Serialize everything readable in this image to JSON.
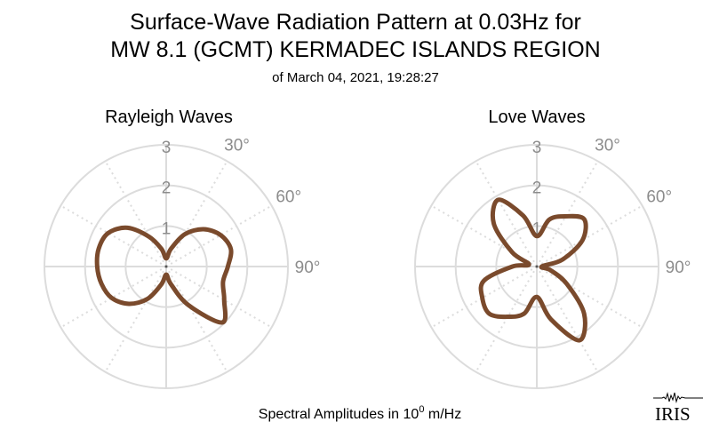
{
  "header": {
    "title_line1": "Surface-Wave Radiation Pattern at 0.03Hz for",
    "title_line2": "MW 8.1 (GCMT) KERMADEC ISLANDS REGION",
    "subtitle": "of March 04, 2021, 19:28:27"
  },
  "footer": {
    "caption_prefix": "Spectral Amplitudes in 10",
    "caption_exp": "0",
    "caption_suffix": " m/Hz"
  },
  "logo": {
    "text": "IRIS"
  },
  "colors": {
    "pattern": "#7a4a2c",
    "grid": "#dcdcdc",
    "tick_text": "#8c8c8c"
  },
  "chart_data": [
    {
      "type": "polar-line",
      "title": "Rayleigh Waves",
      "r_ticks": [
        "1",
        "2",
        "3"
      ],
      "angle_tick_labels": [
        "30°",
        "60°",
        "90°"
      ],
      "rlim": [
        0,
        3
      ],
      "grid": true,
      "angle_step_deg": 15,
      "angles_deg": [
        0,
        15,
        30,
        45,
        60,
        75,
        90,
        105,
        120,
        135,
        150,
        165,
        180,
        195,
        210,
        225,
        240,
        255,
        270,
        285,
        300,
        315,
        330,
        345
      ],
      "values": [
        0.2,
        0.45,
        0.92,
        1.3,
        1.55,
        1.65,
        1.52,
        1.45,
        1.65,
        1.95,
        1.1,
        0.45,
        0.2,
        0.45,
        0.92,
        1.3,
        1.55,
        1.65,
        1.7,
        1.72,
        1.65,
        1.35,
        0.85,
        0.45
      ]
    },
    {
      "type": "polar-line",
      "title": "Love Waves",
      "r_ticks": [
        "1",
        "2",
        "3"
      ],
      "angle_tick_labels": [
        "30°",
        "60°",
        "90°"
      ],
      "rlim": [
        0,
        3
      ],
      "grid": true,
      "angle_step_deg": 15,
      "angles_deg": [
        0,
        15,
        30,
        45,
        60,
        75,
        90,
        105,
        120,
        135,
        150,
        165,
        180,
        195,
        210,
        225,
        240,
        255,
        270,
        285,
        300,
        315,
        330,
        345
      ],
      "values": [
        0.75,
        1.2,
        1.43,
        1.65,
        1.3,
        0.65,
        0.12,
        0.35,
        0.85,
        1.65,
        2.1,
        1.35,
        0.75,
        1.2,
        1.43,
        1.65,
        1.55,
        1.35,
        0.6,
        0.2,
        0.7,
        1.5,
        1.9,
        1.3
      ]
    }
  ]
}
